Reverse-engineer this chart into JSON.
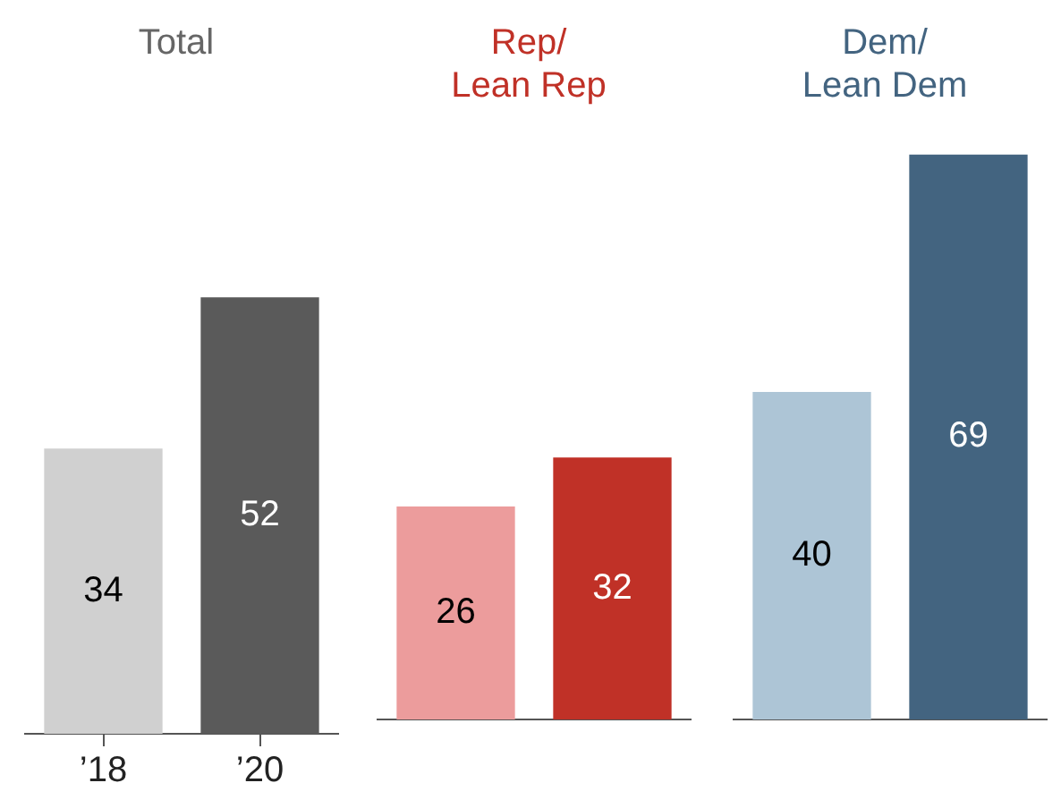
{
  "chart_data": [
    {
      "type": "bar",
      "title": "Total",
      "categories": [
        "’18",
        "’20"
      ],
      "values": [
        34,
        52
      ],
      "colors": [
        "#d0d0d0",
        "#5a5a5a"
      ],
      "data_labels": true,
      "tick_labels": "x"
    },
    {
      "type": "bar",
      "title": "Rep/\nLean Rep",
      "categories": [
        null,
        null
      ],
      "values": [
        26,
        32
      ],
      "colors": [
        "#ec9c9c",
        "#c03127"
      ],
      "data_labels": true,
      "tick_labels": false
    },
    {
      "type": "bar",
      "title": "Dem/\nLean Dem",
      "categories": [
        null,
        null
      ],
      "values": [
        40,
        69
      ],
      "colors": [
        "#adc5d6",
        "#436480"
      ],
      "data_labels": true,
      "tick_labels": false
    }
  ]
}
